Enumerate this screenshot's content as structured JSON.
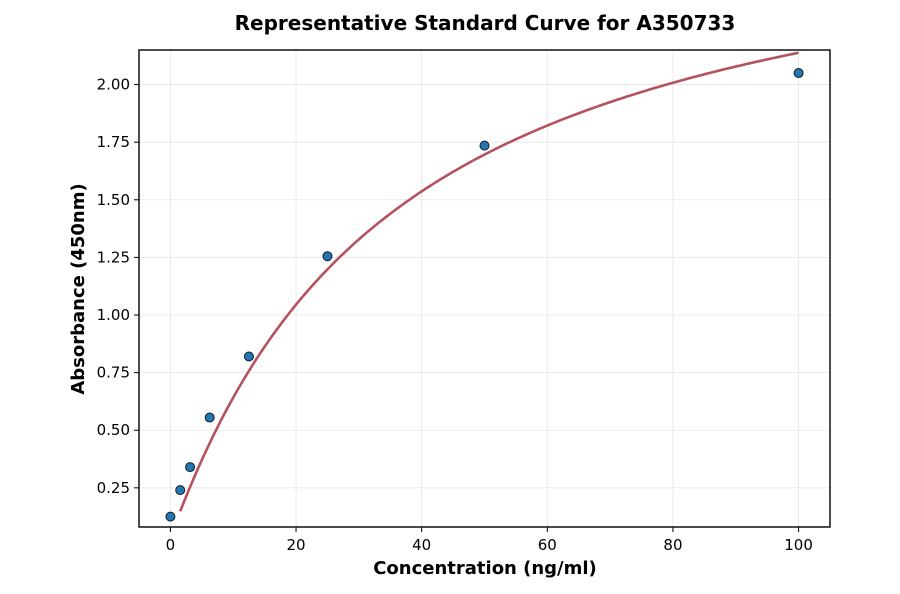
{
  "chart_data": {
    "type": "scatter",
    "title": "Representative Standard Curve for A350733",
    "xlabel": "Concentration (ng/ml)",
    "ylabel": "Absorbance (450nm)",
    "xlim": [
      -5,
      105
    ],
    "ylim": [
      0.08,
      2.15
    ],
    "xticks": [
      0,
      20,
      40,
      60,
      80,
      100
    ],
    "yticks": [
      0.25,
      0.5,
      0.75,
      1.0,
      1.25,
      1.5,
      1.75,
      2.0
    ],
    "ytick_labels": [
      "0.25",
      "0.50",
      "0.75",
      "1.00",
      "1.25",
      "1.50",
      "1.75",
      "2.00"
    ],
    "grid": true,
    "series": [
      {
        "kind": "points",
        "x": [
          0,
          1.56,
          3.13,
          6.25,
          12.5,
          25,
          50,
          100
        ],
        "y": [
          0.125,
          0.24,
          0.34,
          0.555,
          0.82,
          1.255,
          1.735,
          2.05
        ],
        "color": "#1f77b4",
        "edge_color": "#1a1a1a"
      },
      {
        "kind": "fit_curve",
        "x_range": [
          1.56,
          100
        ],
        "model": "4PL",
        "params": {
          "A": 0.04,
          "B": 1.03,
          "C": 35.5,
          "D": 2.86
        },
        "color": "#b5525e"
      }
    ]
  }
}
